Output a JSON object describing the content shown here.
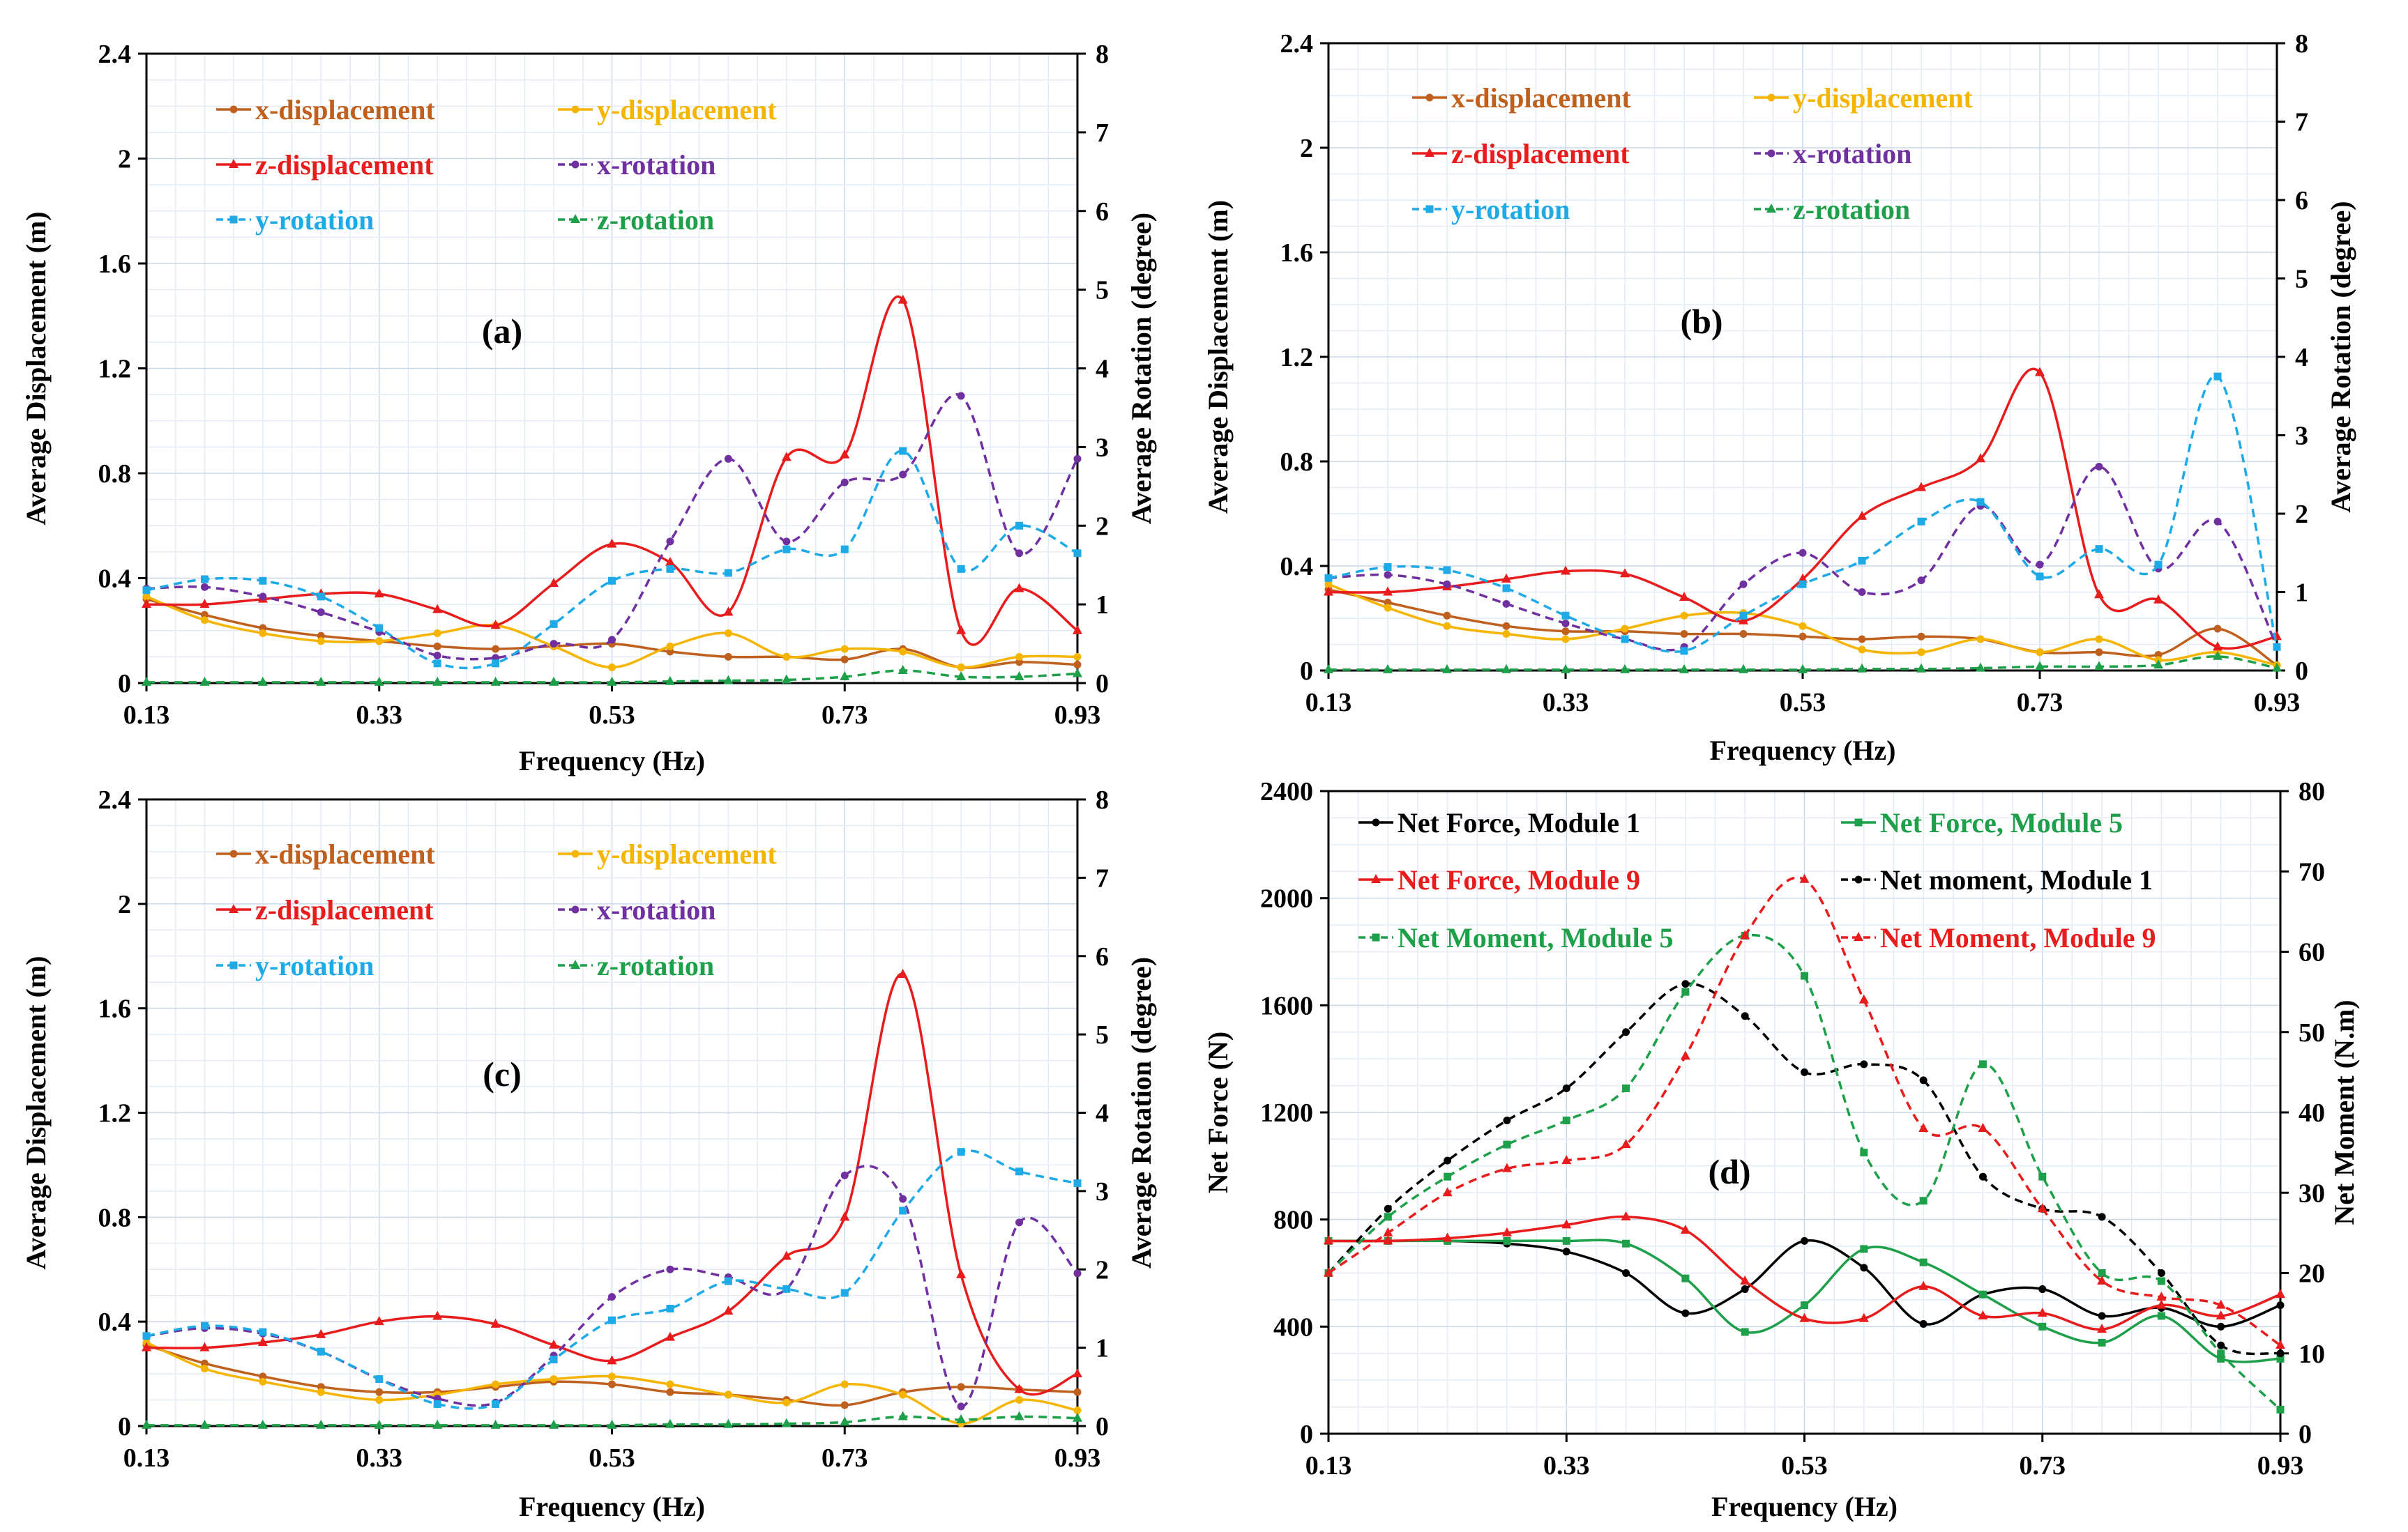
{
  "colors": {
    "x-displacement": "#C0601E",
    "y-displacement": "#F5B400",
    "z-displacement": "#E81C1C",
    "x-rotation": "#7030A0",
    "y-rotation": "#1EAAE6",
    "z-rotation": "#1EA04A",
    "Net Force, Module 1": "#000000",
    "Net Force, Module 5": "#1EA04A",
    "Net Force, Module 9": "#E81C1C",
    "Net moment, Module 1": "#000000",
    "Net Moment, Module 5": "#1EA04A",
    "Net Moment, Module 9": "#E81C1C"
  },
  "chart_data": [
    {
      "type": "line",
      "title": "(a)",
      "xlabel": "Frequency (Hz)",
      "ylabel": "Average Displacement (m)",
      "y2label": "Average Rotation (degree)",
      "xlim": [
        0.13,
        0.93
      ],
      "ylim": [
        0,
        2.4
      ],
      "y2lim": [
        0,
        8
      ],
      "xticks": [
        "0.13",
        "0.33",
        "0.53",
        "0.73",
        "0.93"
      ],
      "yticks": [
        "0",
        "0.4",
        "0.8",
        "1.2",
        "1.6",
        "2",
        "2.4"
      ],
      "y2ticks": [
        "0",
        "1",
        "2",
        "3",
        "4",
        "5",
        "6",
        "7",
        "8"
      ],
      "x": [
        0.13,
        0.18,
        0.23,
        0.28,
        0.33,
        0.38,
        0.43,
        0.48,
        0.53,
        0.58,
        0.63,
        0.68,
        0.73,
        0.78,
        0.83,
        0.88,
        0.93
      ],
      "series": [
        {
          "name": "x-displacement",
          "axis": "left",
          "values": [
            0.32,
            0.26,
            0.21,
            0.18,
            0.16,
            0.14,
            0.13,
            0.14,
            0.15,
            0.12,
            0.1,
            0.1,
            0.09,
            0.13,
            0.06,
            0.08,
            0.07
          ]
        },
        {
          "name": "y-displacement",
          "axis": "left",
          "values": [
            0.33,
            0.24,
            0.19,
            0.16,
            0.16,
            0.19,
            0.22,
            0.14,
            0.06,
            0.14,
            0.19,
            0.1,
            0.13,
            0.12,
            0.06,
            0.1,
            0.1
          ]
        },
        {
          "name": "z-displacement",
          "axis": "left",
          "values": [
            0.3,
            0.3,
            0.32,
            0.34,
            0.34,
            0.28,
            0.22,
            0.38,
            0.53,
            0.46,
            0.27,
            0.86,
            0.87,
            1.46,
            0.2,
            0.36,
            0.2
          ]
        },
        {
          "name": "x-rotation",
          "axis": "right",
          "values": [
            1.2,
            1.22,
            1.1,
            0.9,
            0.65,
            0.35,
            0.32,
            0.5,
            0.55,
            1.8,
            2.85,
            1.8,
            2.55,
            2.65,
            3.65,
            1.65,
            2.85
          ]
        },
        {
          "name": "y-rotation",
          "axis": "right",
          "values": [
            1.18,
            1.32,
            1.3,
            1.1,
            0.7,
            0.25,
            0.25,
            0.75,
            1.3,
            1.45,
            1.4,
            1.7,
            1.7,
            2.95,
            1.45,
            2.0,
            1.65
          ]
        },
        {
          "name": "z-rotation",
          "axis": "right",
          "values": [
            0.01,
            0.01,
            0.01,
            0.01,
            0.01,
            0.01,
            0.01,
            0.01,
            0.01,
            0.02,
            0.03,
            0.04,
            0.08,
            0.16,
            0.08,
            0.08,
            0.12
          ]
        }
      ]
    },
    {
      "type": "line",
      "title": "(b)",
      "xlabel": "Frequency (Hz)",
      "ylabel": "Average Displacement (m)",
      "y2label": "Average Rotation (degree)",
      "xlim": [
        0.13,
        0.93
      ],
      "ylim": [
        0,
        2.4
      ],
      "y2lim": [
        0,
        8
      ],
      "xticks": [
        "0.13",
        "0.33",
        "0.53",
        "0.73",
        "0.93"
      ],
      "yticks": [
        "0",
        "0.4",
        "0.8",
        "1.2",
        "1.6",
        "2",
        "2.4"
      ],
      "y2ticks": [
        "0",
        "1",
        "2",
        "3",
        "4",
        "5",
        "6",
        "7",
        "8"
      ],
      "x": [
        0.13,
        0.18,
        0.23,
        0.28,
        0.33,
        0.38,
        0.43,
        0.48,
        0.53,
        0.58,
        0.63,
        0.68,
        0.73,
        0.78,
        0.83,
        0.88,
        0.93
      ],
      "series": [
        {
          "name": "x-displacement",
          "axis": "left",
          "values": [
            0.31,
            0.26,
            0.21,
            0.17,
            0.15,
            0.15,
            0.14,
            0.14,
            0.13,
            0.12,
            0.13,
            0.12,
            0.07,
            0.07,
            0.06,
            0.16,
            0.02
          ]
        },
        {
          "name": "y-displacement",
          "axis": "left",
          "values": [
            0.33,
            0.24,
            0.17,
            0.14,
            0.12,
            0.16,
            0.21,
            0.22,
            0.17,
            0.08,
            0.07,
            0.12,
            0.07,
            0.12,
            0.04,
            0.07,
            0.02
          ]
        },
        {
          "name": "z-displacement",
          "axis": "left",
          "values": [
            0.3,
            0.3,
            0.32,
            0.35,
            0.38,
            0.37,
            0.28,
            0.19,
            0.35,
            0.59,
            0.7,
            0.81,
            1.14,
            0.29,
            0.27,
            0.09,
            0.13
          ]
        },
        {
          "name": "x-rotation",
          "axis": "right",
          "values": [
            1.18,
            1.22,
            1.1,
            0.85,
            0.6,
            0.4,
            0.3,
            1.1,
            1.5,
            1.0,
            1.15,
            2.1,
            1.35,
            2.6,
            1.3,
            1.9,
            0.3
          ]
        },
        {
          "name": "y-rotation",
          "axis": "right",
          "values": [
            1.18,
            1.32,
            1.28,
            1.05,
            0.7,
            0.4,
            0.25,
            0.7,
            1.1,
            1.4,
            1.9,
            2.15,
            1.2,
            1.55,
            1.35,
            3.75,
            0.3
          ]
        },
        {
          "name": "z-rotation",
          "axis": "right",
          "values": [
            0.01,
            0.01,
            0.01,
            0.01,
            0.01,
            0.01,
            0.01,
            0.01,
            0.01,
            0.02,
            0.02,
            0.03,
            0.05,
            0.05,
            0.07,
            0.18,
            0.03
          ]
        }
      ]
    },
    {
      "type": "line",
      "title": "(c)",
      "xlabel": "Frequency (Hz)",
      "ylabel": "Average Displacement (m)",
      "y2label": "Average Rotation (degree)",
      "xlim": [
        0.13,
        0.93
      ],
      "ylim": [
        0,
        2.4
      ],
      "y2lim": [
        0,
        8
      ],
      "xticks": [
        "0.13",
        "0.33",
        "0.53",
        "0.73",
        "0.93"
      ],
      "yticks": [
        "0",
        "0.4",
        "0.8",
        "1.2",
        "1.6",
        "2",
        "2.4"
      ],
      "y2ticks": [
        "0",
        "1",
        "2",
        "3",
        "4",
        "5",
        "6",
        "7",
        "8"
      ],
      "x": [
        0.13,
        0.18,
        0.23,
        0.28,
        0.33,
        0.38,
        0.43,
        0.48,
        0.53,
        0.58,
        0.63,
        0.68,
        0.73,
        0.78,
        0.83,
        0.88,
        0.93
      ],
      "series": [
        {
          "name": "x-displacement",
          "axis": "left",
          "values": [
            0.31,
            0.24,
            0.19,
            0.15,
            0.13,
            0.13,
            0.15,
            0.17,
            0.16,
            0.13,
            0.12,
            0.1,
            0.08,
            0.13,
            0.15,
            0.14,
            0.13
          ]
        },
        {
          "name": "y-displacement",
          "axis": "left",
          "values": [
            0.32,
            0.22,
            0.17,
            0.13,
            0.1,
            0.12,
            0.16,
            0.18,
            0.19,
            0.16,
            0.12,
            0.09,
            0.16,
            0.12,
            0.01,
            0.1,
            0.06
          ]
        },
        {
          "name": "z-displacement",
          "axis": "left",
          "values": [
            0.3,
            0.3,
            0.32,
            0.35,
            0.4,
            0.42,
            0.39,
            0.31,
            0.25,
            0.34,
            0.44,
            0.65,
            0.8,
            1.73,
            0.58,
            0.14,
            0.2
          ]
        },
        {
          "name": "x-rotation",
          "axis": "right",
          "values": [
            1.15,
            1.25,
            1.18,
            0.95,
            0.6,
            0.35,
            0.3,
            0.9,
            1.65,
            2.0,
            1.9,
            1.75,
            3.2,
            2.9,
            0.25,
            2.6,
            1.95
          ]
        },
        {
          "name": "y-rotation",
          "axis": "right",
          "values": [
            1.15,
            1.28,
            1.2,
            0.95,
            0.6,
            0.28,
            0.28,
            0.85,
            1.35,
            1.5,
            1.85,
            1.75,
            1.7,
            2.75,
            3.5,
            3.25,
            3.1
          ]
        },
        {
          "name": "z-rotation",
          "axis": "right",
          "values": [
            0.01,
            0.01,
            0.01,
            0.01,
            0.01,
            0.01,
            0.01,
            0.01,
            0.01,
            0.02,
            0.02,
            0.03,
            0.05,
            0.12,
            0.08,
            0.12,
            0.1
          ]
        }
      ]
    },
    {
      "type": "line",
      "title": "(d)",
      "xlabel": "Frequency (Hz)",
      "ylabel": "Net Force (N)",
      "y2label": "Net Moment (N.m)",
      "xlim": [
        0.13,
        0.93
      ],
      "ylim": [
        0,
        2400
      ],
      "y2lim": [
        0,
        80
      ],
      "xticks": [
        "0.13",
        "0.33",
        "0.53",
        "0.73",
        "0.93"
      ],
      "yticks": [
        "0",
        "400",
        "800",
        "1200",
        "1600",
        "2000",
        "2400"
      ],
      "y2ticks": [
        "0",
        "10",
        "20",
        "30",
        "40",
        "50",
        "60",
        "70",
        "80"
      ],
      "x": [
        0.13,
        0.18,
        0.23,
        0.28,
        0.33,
        0.38,
        0.43,
        0.48,
        0.53,
        0.58,
        0.63,
        0.68,
        0.73,
        0.78,
        0.83,
        0.88,
        0.93
      ],
      "series": [
        {
          "name": "Net Force, Module 1",
          "axis": "left",
          "values": [
            720,
            720,
            720,
            710,
            680,
            600,
            450,
            540,
            720,
            620,
            410,
            520,
            540,
            440,
            470,
            400,
            480
          ]
        },
        {
          "name": "Net Force, Module 5",
          "axis": "left",
          "values": [
            720,
            720,
            720,
            720,
            720,
            710,
            580,
            380,
            480,
            690,
            640,
            520,
            400,
            340,
            440,
            280,
            280
          ]
        },
        {
          "name": "Net Force, Module 9",
          "axis": "left",
          "values": [
            720,
            720,
            730,
            750,
            780,
            810,
            760,
            570,
            430,
            430,
            550,
            440,
            450,
            390,
            480,
            440,
            520
          ]
        },
        {
          "name": "Net moment, Module 1",
          "axis": "right",
          "values": [
            20,
            28,
            34,
            39,
            43,
            50,
            56,
            52,
            45,
            46,
            44,
            32,
            28,
            27,
            20,
            11,
            10
          ]
        },
        {
          "name": "Net Moment, Module 5",
          "axis": "right",
          "values": [
            20,
            27,
            32,
            36,
            39,
            43,
            55,
            62,
            57,
            35,
            29,
            46,
            32,
            20,
            19,
            10,
            3
          ]
        },
        {
          "name": "Net Moment, Module 9",
          "axis": "right",
          "values": [
            20,
            25,
            30,
            33,
            34,
            36,
            47,
            62,
            69,
            54,
            38,
            38,
            28,
            19,
            17,
            16,
            11
          ]
        }
      ]
    }
  ]
}
